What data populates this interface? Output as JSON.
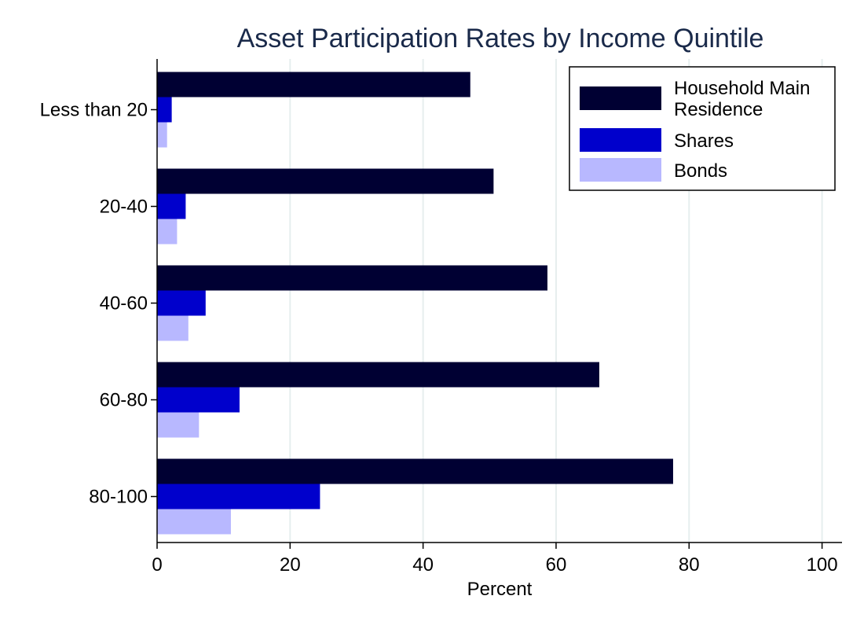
{
  "chart_data": {
    "type": "bar",
    "orientation": "horizontal",
    "title": "Asset Participation Rates by Income Quintile",
    "xlabel": "Percent",
    "ylabel": "",
    "xlim": [
      0,
      103
    ],
    "xticks": [
      0,
      20,
      40,
      60,
      80,
      100
    ],
    "grid": true,
    "legend_position": "top-right",
    "categories": [
      "Less than 20",
      "20-40",
      "40-60",
      "60-80",
      "80-100"
    ],
    "series": [
      {
        "name": "Household Main Residence",
        "color": "#000033",
        "values": [
          47.1,
          50.6,
          58.7,
          66.5,
          77.6
        ]
      },
      {
        "name": "Shares",
        "color": "#0000cc",
        "values": [
          2.2,
          4.3,
          7.3,
          12.4,
          24.5
        ]
      },
      {
        "name": "Bonds",
        "color": "#b8b8ff",
        "values": [
          1.5,
          3.0,
          4.7,
          6.3,
          11.1
        ]
      }
    ]
  }
}
